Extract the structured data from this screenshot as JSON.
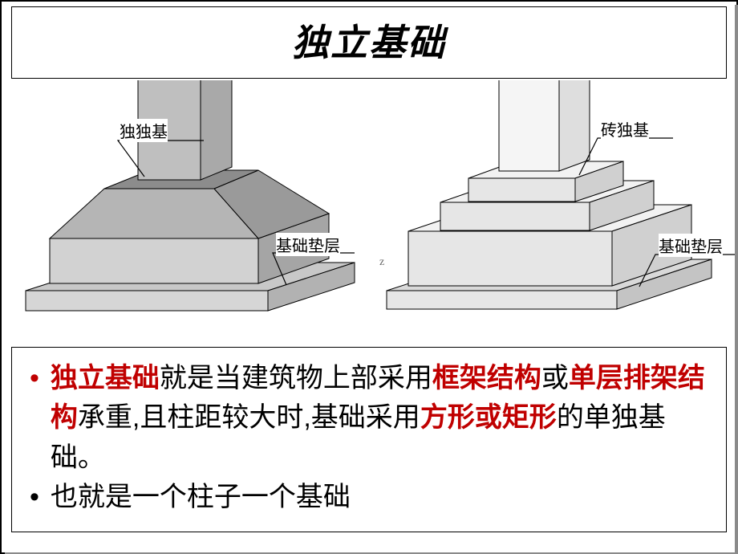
{
  "title": "独立基础",
  "left_diagram": {
    "label_top": "独独基",
    "label_bottom": "基础垫层",
    "label_fontsize": 20,
    "leader_color": "#000000",
    "column_fill": "#a9a9a9",
    "frustum_top_fill": "#8c8c8c",
    "frustum_front_fill": "#b5b5b5",
    "frustum_side_fill": "#9a9a9a",
    "slab_top_fill": "#c8c8c8",
    "slab_front_fill": "#d6d6d6",
    "slab_side_fill": "#b2b2b2",
    "stroke": "#000000",
    "stroke_width": 1
  },
  "right_diagram": {
    "label_top": "砖独基",
    "label_bottom": "基础垫层",
    "label_fontsize": 20,
    "leader_color": "#000000",
    "tier_top_fill": "#f2f2f2",
    "tier_front_fill": "#e6e6e6",
    "tier_side_fill": "#d0d0d0",
    "slab_top_fill": "#d9d9d9",
    "slab_front_fill": "#e6e6e6",
    "slab_side_fill": "#c4c4c4",
    "column_fill": "#f5f5f5",
    "stroke": "#000000",
    "stroke_width": 1
  },
  "bullets": [
    {
      "dot_color": "red",
      "segments": [
        {
          "t": "独立基础",
          "c": "red"
        },
        {
          "t": "就是当建筑物上部采用",
          "c": "black"
        },
        {
          "t": "框架结构",
          "c": "red"
        },
        {
          "t": "或",
          "c": "black"
        },
        {
          "t": "单层排架结构",
          "c": "red"
        },
        {
          "t": "承重,且柱距较大时,基础采用",
          "c": "black"
        },
        {
          "t": "方形或矩形",
          "c": "red"
        },
        {
          "t": "的单独基础。",
          "c": "black"
        }
      ]
    },
    {
      "dot_color": "black",
      "segments": [
        {
          "t": " 也就是一个柱子一个基础",
          "c": "black"
        }
      ]
    }
  ],
  "colors": {
    "frame_stroke": "#000000",
    "red": "#c00000",
    "text": "#000000"
  }
}
